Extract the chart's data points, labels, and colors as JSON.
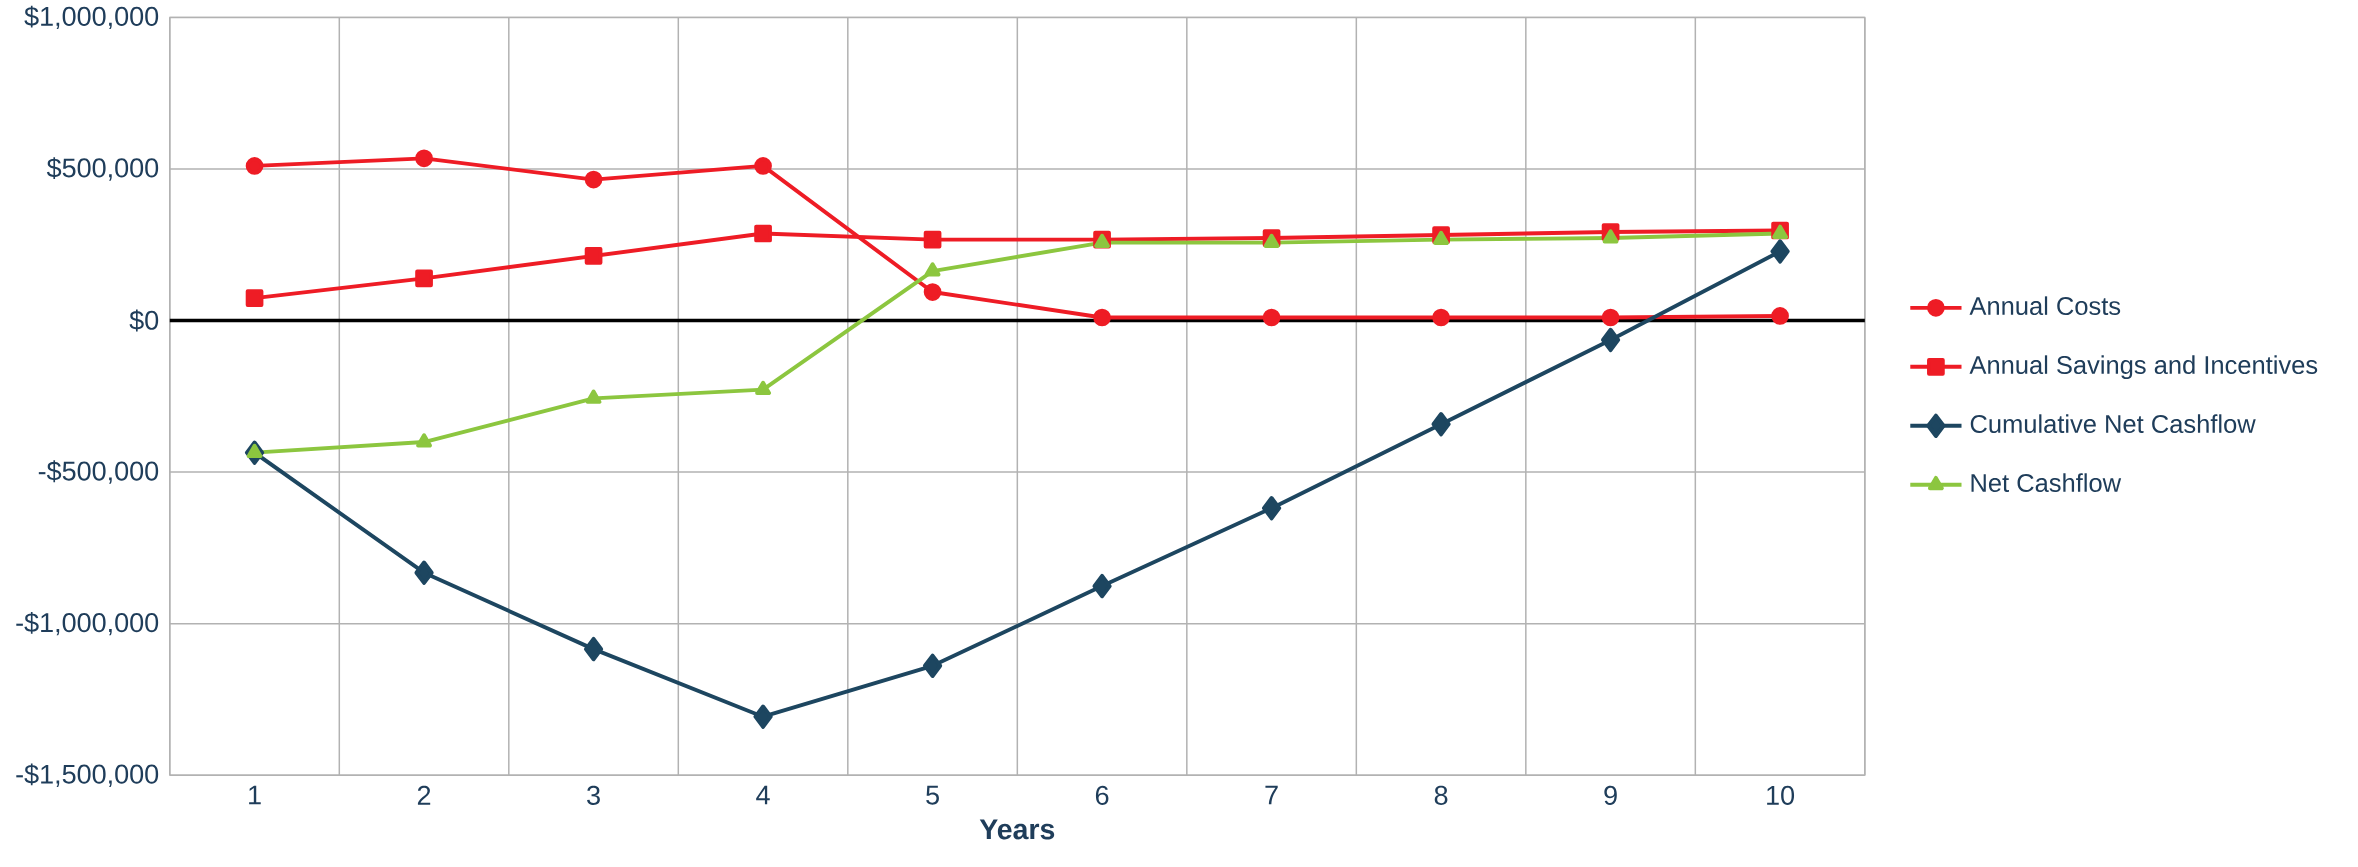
{
  "chart_data": {
    "type": "line",
    "xlabel": "Years",
    "categories": [
      "1",
      "2",
      "3",
      "4",
      "5",
      "6",
      "7",
      "8",
      "9",
      "10"
    ],
    "series": [
      {
        "name": "Annual Costs",
        "color": "#ee1c25",
        "marker": "circle",
        "values": [
          510000,
          535000,
          465000,
          510000,
          94000,
          10000,
          10000,
          10000,
          10000,
          15000
        ]
      },
      {
        "name": "Annual Savings and Incentives",
        "color": "#ee1c25",
        "marker": "square",
        "values": [
          74000,
          139000,
          213000,
          287000,
          267000,
          267000,
          272000,
          282000,
          292000,
          297000
        ]
      },
      {
        "name": "Cumulative Net Cashflow",
        "color": "#1d4660",
        "marker": "diamond",
        "values": [
          -436000,
          -832000,
          -1084000,
          -1307000,
          -1139000,
          -876000,
          -619000,
          -342000,
          -64000,
          228000
        ]
      },
      {
        "name": "Net Cashflow",
        "color": "#8cc63f",
        "marker": "triangle",
        "values": [
          -436000,
          -401000,
          -257000,
          -228000,
          163000,
          257000,
          257000,
          267000,
          272000,
          287000
        ]
      }
    ],
    "ylim": [
      -1500000,
      1000000
    ],
    "yticks": [
      {
        "value": -1500000,
        "label": "-$1,500,000"
      },
      {
        "value": -1000000,
        "label": "-$1,000,000"
      },
      {
        "value": -500000,
        "label": "-$500,000"
      },
      {
        "value": 0,
        "label": "$0"
      },
      {
        "value": 500000,
        "label": "$500,000"
      },
      {
        "value": 1000000,
        "label": "$1,000,000"
      }
    ],
    "grid": true,
    "legend": "right",
    "line_style": "solid"
  }
}
